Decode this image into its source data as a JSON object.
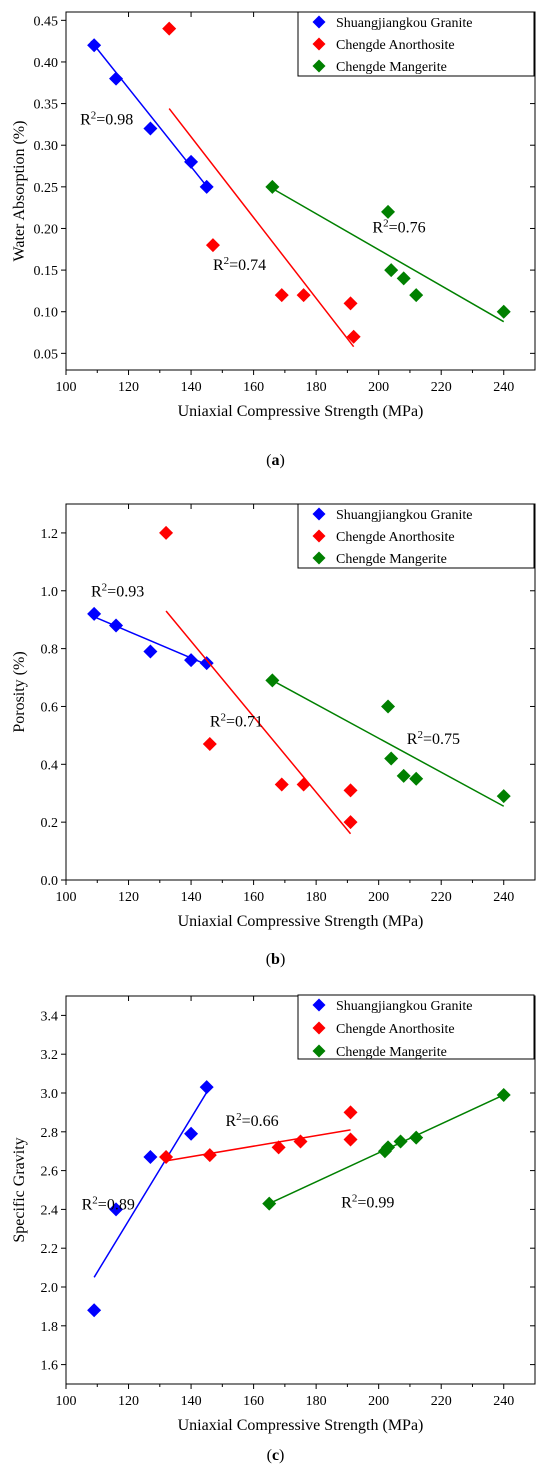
{
  "colors": {
    "Shuangjiangkou Granite": "#0000ff",
    "Chengde Anorthosite": "#ff0000",
    "Chengde Mangerite": "#008000"
  },
  "chart_data": [
    {
      "type": "scatter",
      "caption": "a",
      "xlabel": "Uniaxial Compressive Strength (MPa)",
      "ylabel": "Water Absorption (%)",
      "xlim": [
        100,
        250
      ],
      "ylim": [
        0.03,
        0.46
      ],
      "xticks": [
        100,
        120,
        140,
        160,
        180,
        200,
        220,
        240
      ],
      "yticks": [
        0.05,
        0.1,
        0.15,
        0.2,
        0.25,
        0.3,
        0.35,
        0.4,
        0.45
      ],
      "ytick_format": 2,
      "legend": "top-right",
      "series": [
        {
          "name": "Shuangjiangkou Granite",
          "points": [
            [
              109,
              0.42
            ],
            [
              116,
              0.38
            ],
            [
              127,
              0.32
            ],
            [
              140,
              0.28
            ],
            [
              145,
              0.25
            ]
          ],
          "fit": [
            [
              108,
              0.425
            ],
            [
              146,
              0.246
            ]
          ],
          "r2": "0.98",
          "r2_pos": [
            104.5,
            0.325
          ]
        },
        {
          "name": "Chengde Anorthosite",
          "points": [
            [
              133,
              0.44
            ],
            [
              147,
              0.18
            ],
            [
              169,
              0.12
            ],
            [
              176,
              0.12
            ],
            [
              191,
              0.11
            ],
            [
              192,
              0.07
            ]
          ],
          "fit": [
            [
              133,
              0.344
            ],
            [
              192,
              0.058
            ]
          ],
          "r2": "0.74",
          "r2_pos": [
            147,
            0.15
          ]
        },
        {
          "name": "Chengde Mangerite",
          "points": [
            [
              166,
              0.25
            ],
            [
              203,
              0.22
            ],
            [
              204,
              0.15
            ],
            [
              208,
              0.14
            ],
            [
              212,
              0.12
            ],
            [
              240,
              0.1
            ]
          ],
          "fit": [
            [
              166,
              0.248
            ],
            [
              240,
              0.088
            ]
          ],
          "r2": "0.76",
          "r2_pos": [
            198,
            0.195
          ]
        }
      ]
    },
    {
      "type": "scatter",
      "caption": "b",
      "xlabel": "Uniaxial Compressive Strength (MPa)",
      "ylabel": "Porosity (%)",
      "xlim": [
        100,
        250
      ],
      "ylim": [
        0.0,
        1.3
      ],
      "xticks": [
        100,
        120,
        140,
        160,
        180,
        200,
        220,
        240
      ],
      "yticks": [
        0.0,
        0.2,
        0.4,
        0.6,
        0.8,
        1.0,
        1.2
      ],
      "ytick_format": 1,
      "legend": "top-right",
      "series": [
        {
          "name": "Shuangjiangkou Granite",
          "points": [
            [
              109,
              0.92
            ],
            [
              116,
              0.88
            ],
            [
              127,
              0.79
            ],
            [
              140,
              0.76
            ],
            [
              145,
              0.75
            ]
          ],
          "fit": [
            [
              109,
              0.91
            ],
            [
              146,
              0.74
            ]
          ],
          "r2": "0.93",
          "r2_pos": [
            108,
            0.98
          ]
        },
        {
          "name": "Chengde Anorthosite",
          "points": [
            [
              132,
              1.2
            ],
            [
              146,
              0.47
            ],
            [
              169,
              0.33
            ],
            [
              176,
              0.33
            ],
            [
              191,
              0.31
            ],
            [
              191,
              0.2
            ]
          ],
          "fit": [
            [
              132,
              0.93
            ],
            [
              191,
              0.16
            ]
          ],
          "r2": "0.71",
          "r2_pos": [
            146,
            0.53
          ]
        },
        {
          "name": "Chengde Mangerite",
          "points": [
            [
              166,
              0.69
            ],
            [
              203,
              0.6
            ],
            [
              204,
              0.42
            ],
            [
              208,
              0.36
            ],
            [
              212,
              0.35
            ],
            [
              240,
              0.29
            ]
          ],
          "fit": [
            [
              166,
              0.69
            ],
            [
              240,
              0.255
            ]
          ],
          "r2": "0.75",
          "r2_pos": [
            209,
            0.47
          ]
        }
      ]
    },
    {
      "type": "scatter",
      "caption": "c",
      "xlabel": "Uniaxial Compressive Strength (MPa)",
      "ylabel": "Specific Gravity",
      "xlim": [
        100,
        250
      ],
      "ylim": [
        1.5,
        3.5
      ],
      "xticks": [
        100,
        120,
        140,
        160,
        180,
        200,
        220,
        240
      ],
      "yticks": [
        1.6,
        1.8,
        2.0,
        2.2,
        2.4,
        2.6,
        2.8,
        3.0,
        3.2,
        3.4
      ],
      "ytick_format": 1,
      "legend": "top-right",
      "series": [
        {
          "name": "Shuangjiangkou Granite",
          "points": [
            [
              109,
              1.88
            ],
            [
              116,
              2.4
            ],
            [
              127,
              2.67
            ],
            [
              140,
              2.79
            ],
            [
              145,
              3.03
            ]
          ],
          "fit": [
            [
              109,
              2.05
            ],
            [
              146,
              3.03
            ]
          ],
          "r2": "0.89",
          "r2_pos": [
            105,
            2.4
          ]
        },
        {
          "name": "Chengde Anorthosite",
          "points": [
            [
              132,
              2.67
            ],
            [
              146,
              2.68
            ],
            [
              168,
              2.72
            ],
            [
              175,
              2.75
            ],
            [
              191,
              2.76
            ],
            [
              191,
              2.9
            ]
          ],
          "fit": [
            [
              132,
              2.65
            ],
            [
              191,
              2.81
            ]
          ],
          "r2": "0.66",
          "r2_pos": [
            151,
            2.83
          ]
        },
        {
          "name": "Chengde Mangerite",
          "points": [
            [
              165,
              2.43
            ],
            [
              202,
              2.7
            ],
            [
              203,
              2.72
            ],
            [
              207,
              2.75
            ],
            [
              212,
              2.77
            ],
            [
              240,
              2.99
            ]
          ],
          "fit": [
            [
              165,
              2.43
            ],
            [
              240,
              2.99
            ]
          ],
          "r2": "0.99",
          "r2_pos": [
            188,
            2.41
          ]
        }
      ]
    }
  ]
}
